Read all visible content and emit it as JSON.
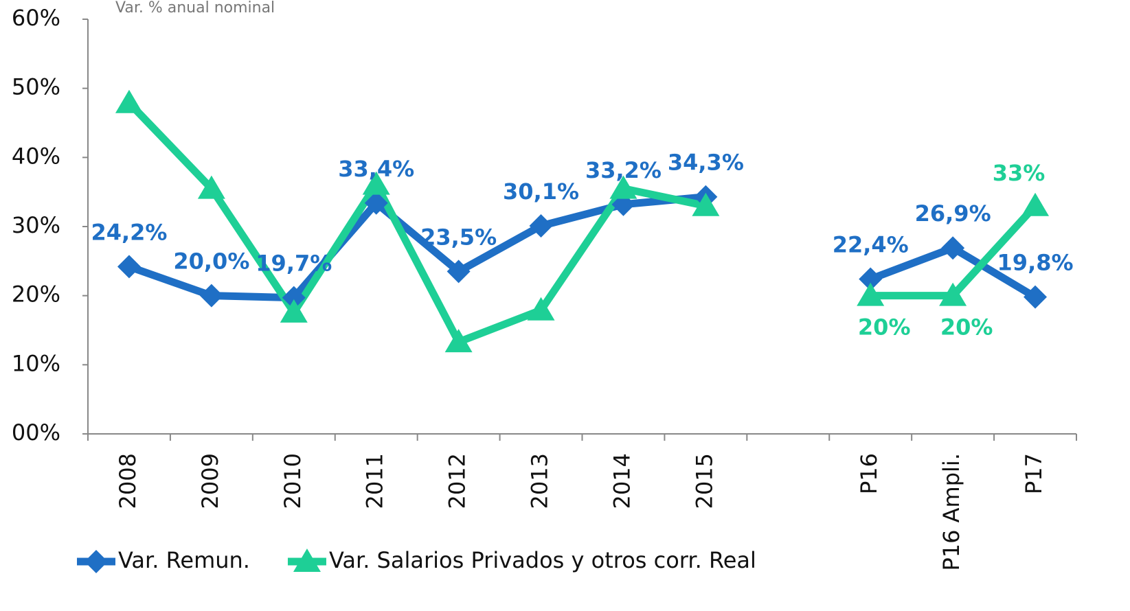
{
  "chart_data": {
    "type": "line",
    "subtitle": "Var. % anual nominal",
    "categories": [
      "2008",
      "2009",
      "2010",
      "2011",
      "2012",
      "2013",
      "2014",
      "2015",
      null,
      "P16",
      "P16 Ampli.",
      "P17"
    ],
    "series": [
      {
        "name": "Var. Remun.",
        "color": "#1f6fc5",
        "marker": "diamond",
        "values": [
          24.2,
          20.0,
          19.7,
          33.4,
          23.5,
          30.1,
          33.2,
          34.3,
          null,
          22.4,
          26.9,
          19.8
        ],
        "value_labels": [
          "24,2%",
          "20,0%",
          "19,7%",
          "33,4%",
          "23,5%",
          "30,1%",
          "33,2%",
          "34,3%",
          null,
          "22,4%",
          "26,9%",
          "19,8%"
        ]
      },
      {
        "name": "Var. Salarios Privados y otros corr. Real",
        "color": "#1ecf96",
        "marker": "triangle",
        "values": [
          47.9,
          35.5,
          17.6,
          36.1,
          13.3,
          17.9,
          35.5,
          33.0,
          null,
          20,
          20,
          33
        ],
        "value_labels": [
          null,
          null,
          null,
          null,
          null,
          null,
          null,
          null,
          null,
          "20%",
          "20%",
          "33%"
        ]
      }
    ],
    "ylim": [
      0,
      60
    ],
    "yticks": [
      {
        "value": 0,
        "label": "00%"
      },
      {
        "value": 10,
        "label": "10%"
      },
      {
        "value": 20,
        "label": "20%"
      },
      {
        "value": 30,
        "label": "30%"
      },
      {
        "value": 40,
        "label": "40%"
      },
      {
        "value": 50,
        "label": "50%"
      },
      {
        "value": 60,
        "label": "60%"
      }
    ],
    "legend": "bottom-left"
  }
}
